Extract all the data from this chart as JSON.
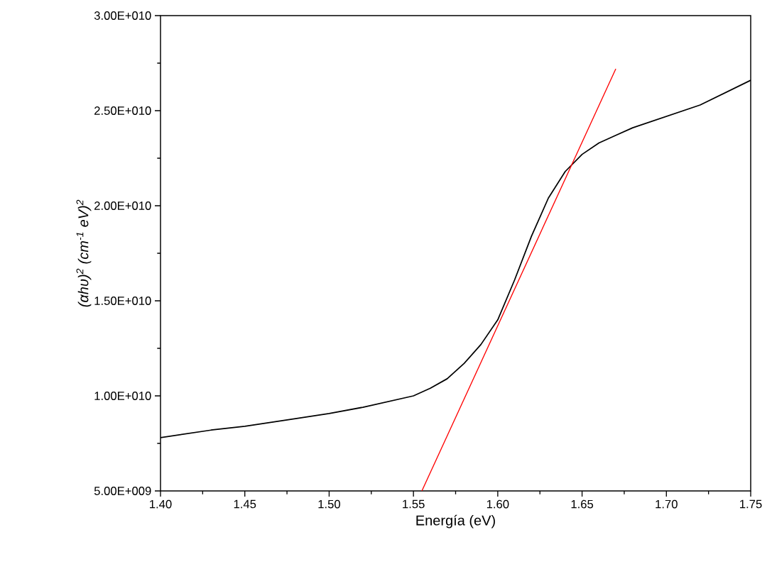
{
  "chart_data": {
    "type": "line",
    "xlabel": "Energía (eV)",
    "ylabel": "(αhυ)$^{2}$ (cm$^{-1}$ eV)$^{2}$",
    "xlim": [
      1.4,
      1.75
    ],
    "ylim": [
      5000000000.0,
      30000000000.0
    ],
    "xticks": [
      {
        "value": 1.4,
        "label": "1.40"
      },
      {
        "value": 1.45,
        "label": "1.45"
      },
      {
        "value": 1.5,
        "label": "1.50"
      },
      {
        "value": 1.55,
        "label": "1.55"
      },
      {
        "value": 1.6,
        "label": "1.60"
      },
      {
        "value": 1.65,
        "label": "1.65"
      },
      {
        "value": 1.7,
        "label": "1.70"
      },
      {
        "value": 1.75,
        "label": "1.75"
      }
    ],
    "yticks": [
      {
        "value": 5000000000.0,
        "label": "5.00E+009"
      },
      {
        "value": 10000000000.0,
        "label": "1.00E+010"
      },
      {
        "value": 15000000000.0,
        "label": "1.50E+010"
      },
      {
        "value": 20000000000.0,
        "label": "2.00E+010"
      },
      {
        "value": 25000000000.0,
        "label": "2.50E+010"
      },
      {
        "value": 30000000000.0,
        "label": "3.00E+010"
      }
    ],
    "grid": false,
    "legend": false,
    "marker": "none",
    "series": [
      {
        "color": "#000000",
        "x": [
          1.4,
          1.43,
          1.45,
          1.48,
          1.5,
          1.52,
          1.55,
          1.56,
          1.57,
          1.58,
          1.59,
          1.6,
          1.61,
          1.62,
          1.63,
          1.64,
          1.65,
          1.66,
          1.67,
          1.68,
          1.7,
          1.72,
          1.75
        ],
        "values": [
          7800000000.0,
          8200000000.0,
          8400000000.0,
          8800000000.0,
          9070000000.0,
          9400000000.0,
          10000000000.0,
          10400000000.0,
          10900000000.0,
          11700000000.0,
          12700000000.0,
          14000000000.0,
          16100000000.0,
          18400000000.0,
          20400000000.0,
          21800000000.0,
          22700000000.0,
          23300000000.0,
          23700000000.0,
          24100000000.0,
          24700000000.0,
          25300000000.0,
          26600000000.0
        ]
      },
      {
        "type": "line",
        "color": "#ff0000",
        "x": [
          1.555,
          1.67
        ],
        "values": [
          5000000000.0,
          27200000000.0
        ]
      }
    ]
  }
}
